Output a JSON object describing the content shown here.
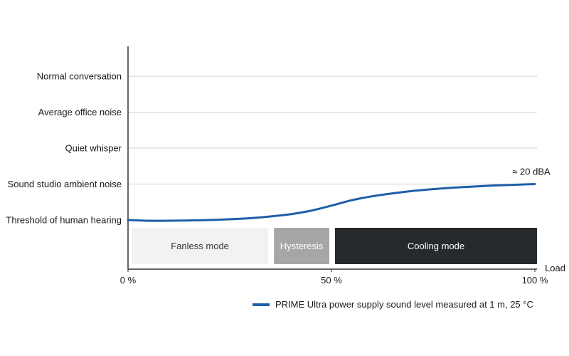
{
  "chart_data": {
    "type": "line",
    "xlabel": "Load",
    "x_ticks": [
      "0 %",
      "50 %",
      "100 %"
    ],
    "xlim": [
      0,
      100
    ],
    "y_categories": [
      "Threshold of human hearing",
      "Sound studio ambient noise",
      "Quiet whisper",
      "Average office noise",
      "Normal conversation"
    ],
    "ylim": [
      0,
      4.4
    ],
    "grid": true,
    "series": [
      {
        "name": "PRIME Ultra power supply sound level measured at 1 m, 25 °C",
        "color": "#1f5fa8",
        "x": [
          0,
          5,
          10,
          20,
          30,
          35,
          40,
          45,
          50,
          55,
          60,
          65,
          70,
          75,
          80,
          85,
          90,
          95,
          100
        ],
        "y": [
          0.0,
          -0.02,
          -0.02,
          0.0,
          0.05,
          0.1,
          0.16,
          0.26,
          0.4,
          0.55,
          0.66,
          0.74,
          0.81,
          0.86,
          0.9,
          0.93,
          0.96,
          0.98,
          1.0
        ]
      }
    ],
    "annotations": [
      {
        "text": "≈ 20 dBA",
        "x": 100,
        "y": 1.0
      }
    ],
    "zones": [
      {
        "label": "Fanless mode",
        "x_start": 0,
        "x_end": 35,
        "color": "#f2f2f2",
        "text_color": "#333333"
      },
      {
        "label": "Hysteresis",
        "x_start": 35,
        "x_end": 50,
        "color": "#a6a6a6",
        "text_color": "#ffffff"
      },
      {
        "label": "Cooling mode",
        "x_start": 50,
        "x_end": 100,
        "color": "#262a2d",
        "text_color": "#ffffff"
      }
    ],
    "legend_position": "bottom"
  }
}
